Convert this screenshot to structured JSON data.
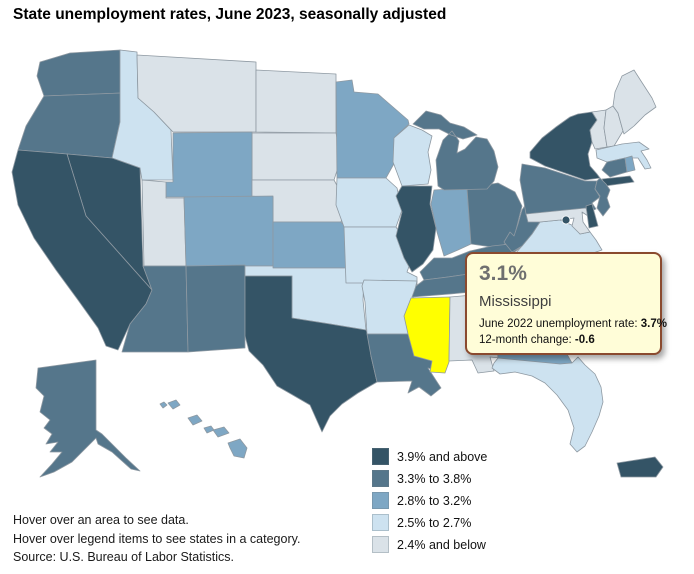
{
  "title": "State unemployment rates, June 2023, seasonally adjusted",
  "tooltip": {
    "value": "3.1%",
    "state": "Mississippi",
    "line1_label": "June 2022 unemployment rate: ",
    "line1_value": "3.7%",
    "line2_label": "12-month change: ",
    "line2_value": "-0.6",
    "bg": "#FFFDD8",
    "border": "#8A4A2F"
  },
  "legend": {
    "items": [
      {
        "key": "cat5",
        "label": "3.9% and above",
        "color": "#345466"
      },
      {
        "key": "cat4",
        "label": "3.3% to 3.8%",
        "color": "#55768B"
      },
      {
        "key": "cat3",
        "label": "2.8% to 3.2%",
        "color": "#7EA7C4"
      },
      {
        "key": "cat2",
        "label": "2.5% to 2.7%",
        "color": "#CDE2F0"
      },
      {
        "key": "cat1",
        "label": "2.4% and below",
        "color": "#DAE2E8"
      }
    ]
  },
  "footer": {
    "line1": "Hover over an area to see data.",
    "line2": "Hover over legend items to see states in a category.",
    "line3": "Source: U.S. Bureau of Labor Statistics."
  },
  "map": {
    "highlighted_state": "MS",
    "highlight_color": "#FFFF00",
    "border_color": "#8E99A2"
  },
  "chart_data": {
    "type": "heatmap",
    "variant": "us-state-choropleth",
    "title": "State unemployment rates, June 2023, seasonally adjusted",
    "unit": "percent",
    "legend_position": "bottom-right",
    "bins": [
      "3.9% and above",
      "3.3% to 3.8%",
      "2.8% to 3.2%",
      "2.5% to 2.7%",
      "2.4% and below"
    ],
    "highlight": {
      "state": "Mississippi",
      "rate": "3.1%",
      "june_2022_rate": "3.7%",
      "change_12_month": "-0.6"
    },
    "states": {
      "WA": "cat4",
      "OR": "cat4",
      "CA": "cat5",
      "NV": "cat5",
      "ID": "cat2",
      "MT": "cat1",
      "WY": "cat3",
      "UT": "cat1",
      "CO": "cat3",
      "AZ": "cat4",
      "NM": "cat4",
      "ND": "cat1",
      "SD": "cat1",
      "NE": "cat1",
      "KS": "cat3",
      "OK": "cat2",
      "TX": "cat5",
      "MN": "cat3",
      "IA": "cat2",
      "MO": "cat2",
      "AR": "cat2",
      "LA": "cat4",
      "WI": "cat2",
      "IL": "cat5",
      "MI": "cat4",
      "IN": "cat3",
      "OH": "cat4",
      "KY": "cat4",
      "TN": "cat4",
      "MS": "cat3",
      "AL": "cat1",
      "GA": "cat3",
      "FL": "cat2",
      "SC": "cat3",
      "NC": "cat4",
      "VA": "cat2",
      "WV": "cat4",
      "MD": "cat1",
      "DE": "cat5",
      "DC": "cat5",
      "PA": "cat4",
      "NY": "cat5",
      "NJ": "cat4",
      "CT": "cat4",
      "RI": "cat3",
      "MA": "cat2",
      "VT": "cat1",
      "NH": "cat1",
      "ME": "cat1",
      "AK": "cat4",
      "HI": "cat3",
      "PR": "cat5"
    }
  }
}
